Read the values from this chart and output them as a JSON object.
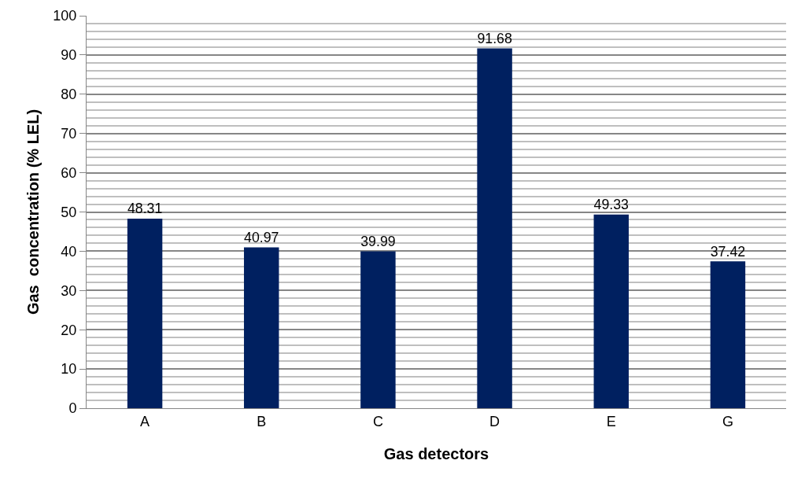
{
  "chart_data": {
    "type": "bar",
    "xlabel": "Gas detectors",
    "ylabel": "Gas  concentration (% LEL)",
    "categories": [
      "A",
      "B",
      "C",
      "D",
      "E",
      "G"
    ],
    "values": [
      48.31,
      40.97,
      39.99,
      91.68,
      49.33,
      37.42
    ],
    "color": "#002060",
    "ylim": [
      0,
      100
    ],
    "yticks": [
      0,
      10,
      20,
      30,
      40,
      50,
      60,
      70,
      80,
      90,
      100
    ],
    "grid": "y",
    "data_labels": true
  }
}
